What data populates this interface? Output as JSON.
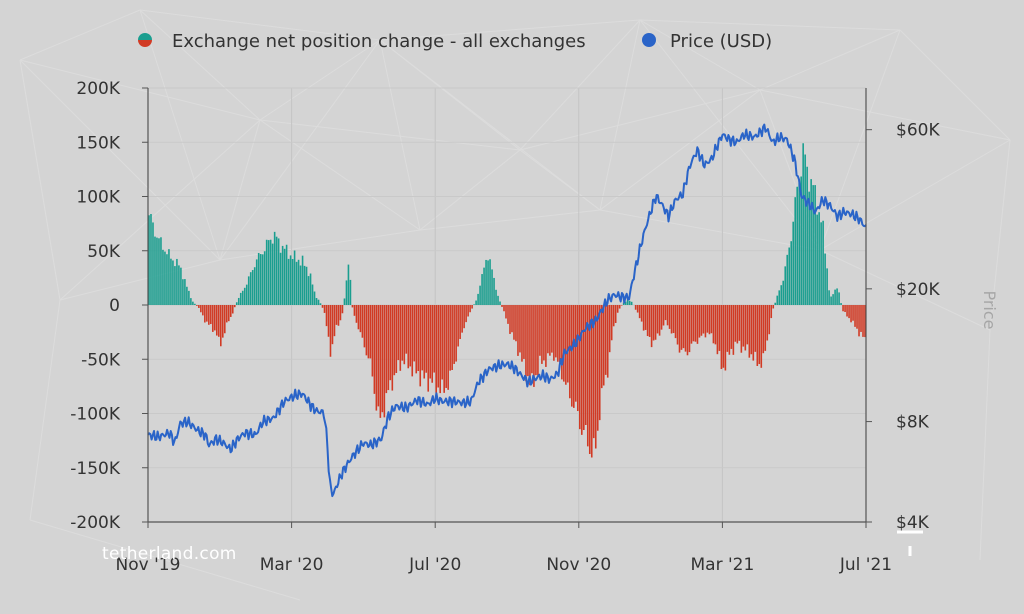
{
  "chart_data": {
    "type": "bar+line",
    "watermark": "tetherland.com",
    "legend": [
      {
        "label": "Exchange net position change - all exchanges",
        "colors": [
          "#1a9e8f",
          "#d13a24"
        ]
      },
      {
        "label": "Price (USD)",
        "colors": [
          "#2a64c8"
        ]
      }
    ],
    "left_axis": {
      "ticks": [
        200000,
        150000,
        100000,
        50000,
        0,
        -50000,
        -100000,
        -150000,
        -200000
      ],
      "tick_labels": [
        "200K",
        "150K",
        "100K",
        "50K",
        "0",
        "-50K",
        "-100K",
        "-150K",
        "-200K"
      ],
      "ylim": [
        -200000,
        200000
      ]
    },
    "right_axis": {
      "title": "Price",
      "scale": "log",
      "ticks": [
        60000,
        20000,
        8000,
        4000
      ],
      "tick_labels": [
        "$60K",
        "$20K",
        "$8K",
        "$4K"
      ],
      "ylim": [
        4000,
        80000
      ]
    },
    "x_axis": {
      "tick_labels": [
        "Nov '19",
        "Mar '20",
        "Jul '20",
        "Nov '20",
        "Mar '21",
        "Jul '21"
      ],
      "range_months": [
        0,
        20
      ]
    },
    "colors": {
      "positive": "#1a9e8f",
      "negative": "#d13a24",
      "price": "#2a64c8"
    },
    "net_position_points": [
      [
        0.0,
        85000
      ],
      [
        0.3,
        60000
      ],
      [
        0.6,
        45000
      ],
      [
        0.9,
        35000
      ],
      [
        1.1,
        15000
      ],
      [
        1.25,
        3000
      ],
      [
        1.4,
        -2000
      ],
      [
        1.6,
        -15000
      ],
      [
        1.9,
        -25000
      ],
      [
        2.0,
        -38000
      ],
      [
        2.2,
        -18000
      ],
      [
        2.35,
        -8000
      ],
      [
        2.5,
        5000
      ],
      [
        2.75,
        20000
      ],
      [
        3.0,
        40000
      ],
      [
        3.3,
        55000
      ],
      [
        3.5,
        65000
      ],
      [
        3.7,
        55000
      ],
      [
        4.0,
        45000
      ],
      [
        4.3,
        40000
      ],
      [
        4.5,
        30000
      ],
      [
        4.65,
        10000
      ],
      [
        4.8,
        2000
      ],
      [
        4.9,
        -5000
      ],
      [
        5.0,
        -25000
      ],
      [
        5.1,
        -45000
      ],
      [
        5.25,
        -20000
      ],
      [
        5.4,
        -12000
      ],
      [
        5.6,
        40000
      ],
      [
        5.7,
        -5000
      ],
      [
        5.9,
        -25000
      ],
      [
        6.2,
        -55000
      ],
      [
        6.45,
        -110000
      ],
      [
        6.6,
        -90000
      ],
      [
        6.8,
        -70000
      ],
      [
        7.1,
        -50000
      ],
      [
        7.4,
        -60000
      ],
      [
        7.7,
        -68000
      ],
      [
        8.0,
        -72000
      ],
      [
        8.2,
        -80000
      ],
      [
        8.4,
        -70000
      ],
      [
        8.6,
        -45000
      ],
      [
        8.8,
        -20000
      ],
      [
        9.0,
        -5000
      ],
      [
        9.15,
        5000
      ],
      [
        9.3,
        25000
      ],
      [
        9.45,
        48000
      ],
      [
        9.6,
        30000
      ],
      [
        9.75,
        8000
      ],
      [
        9.9,
        -5000
      ],
      [
        10.1,
        -25000
      ],
      [
        10.3,
        -40000
      ],
      [
        10.5,
        -60000
      ],
      [
        10.7,
        -75000
      ],
      [
        10.9,
        -55000
      ],
      [
        11.1,
        -50000
      ],
      [
        11.3,
        -45000
      ],
      [
        11.5,
        -60000
      ],
      [
        11.7,
        -80000
      ],
      [
        11.9,
        -95000
      ],
      [
        12.1,
        -115000
      ],
      [
        12.3,
        -130000
      ],
      [
        12.45,
        -140000
      ],
      [
        12.6,
        -90000
      ],
      [
        12.8,
        -60000
      ],
      [
        12.95,
        -25000
      ],
      [
        13.1,
        -5000
      ],
      [
        13.25,
        2000
      ],
      [
        13.4,
        5000
      ],
      [
        13.5,
        2000
      ],
      [
        13.6,
        -5000
      ],
      [
        13.8,
        -20000
      ],
      [
        14.0,
        -35000
      ],
      [
        14.2,
        -30000
      ],
      [
        14.4,
        -15000
      ],
      [
        14.6,
        -25000
      ],
      [
        14.8,
        -40000
      ],
      [
        15.0,
        -45000
      ],
      [
        15.2,
        -35000
      ],
      [
        15.4,
        -30000
      ],
      [
        15.6,
        -25000
      ],
      [
        15.8,
        -35000
      ],
      [
        16.0,
        -60000
      ],
      [
        16.2,
        -45000
      ],
      [
        16.4,
        -35000
      ],
      [
        16.6,
        -40000
      ],
      [
        16.8,
        -45000
      ],
      [
        17.0,
        -55000
      ],
      [
        17.15,
        -50000
      ],
      [
        17.3,
        -25000
      ],
      [
        17.4,
        -5000
      ],
      [
        17.5,
        5000
      ],
      [
        17.7,
        25000
      ],
      [
        17.9,
        60000
      ],
      [
        18.1,
        110000
      ],
      [
        18.25,
        140000
      ],
      [
        18.4,
        120000
      ],
      [
        18.6,
        100000
      ],
      [
        18.8,
        70000
      ],
      [
        18.9,
        40000
      ],
      [
        19.0,
        5000
      ],
      [
        19.2,
        18000
      ],
      [
        19.35,
        -5000
      ],
      [
        19.6,
        -15000
      ],
      [
        19.8,
        -25000
      ],
      [
        20.0,
        -33000
      ]
    ],
    "price_points": [
      [
        0.0,
        7300
      ],
      [
        0.3,
        7200
      ],
      [
        0.6,
        7400
      ],
      [
        0.75,
        6900
      ],
      [
        0.9,
        7900
      ],
      [
        1.1,
        8000
      ],
      [
        1.4,
        7500
      ],
      [
        1.6,
        7300
      ],
      [
        1.7,
        6800
      ],
      [
        1.9,
        7100
      ],
      [
        2.1,
        6900
      ],
      [
        2.3,
        6600
      ],
      [
        2.5,
        7100
      ],
      [
        2.7,
        7400
      ],
      [
        3.0,
        7300
      ],
      [
        3.2,
        8000
      ],
      [
        3.5,
        8200
      ],
      [
        3.8,
        9200
      ],
      [
        4.1,
        9600
      ],
      [
        4.3,
        9700
      ],
      [
        4.55,
        8900
      ],
      [
        4.7,
        8600
      ],
      [
        4.9,
        8500
      ],
      [
        5.0,
        6800
      ],
      [
        5.05,
        5300
      ],
      [
        5.15,
        4800
      ],
      [
        5.4,
        5600
      ],
      [
        5.7,
        6300
      ],
      [
        6.0,
        6900
      ],
      [
        6.2,
        6800
      ],
      [
        6.5,
        7100
      ],
      [
        6.7,
        8300
      ],
      [
        6.9,
        8900
      ],
      [
        7.2,
        8800
      ],
      [
        7.5,
        9300
      ],
      [
        7.8,
        9000
      ],
      [
        8.0,
        9400
      ],
      [
        8.2,
        9200
      ],
      [
        8.5,
        9200
      ],
      [
        8.8,
        9100
      ],
      [
        9.0,
        9200
      ],
      [
        9.2,
        10500
      ],
      [
        9.5,
        11500
      ],
      [
        9.8,
        11800
      ],
      [
        10.0,
        11900
      ],
      [
        10.2,
        11600
      ],
      [
        10.4,
        11000
      ],
      [
        10.6,
        10500
      ],
      [
        10.8,
        10800
      ],
      [
        11.0,
        11000
      ],
      [
        11.2,
        10700
      ],
      [
        11.4,
        11100
      ],
      [
        11.6,
        12800
      ],
      [
        11.9,
        13700
      ],
      [
        12.2,
        15300
      ],
      [
        12.5,
        16200
      ],
      [
        12.8,
        18500
      ],
      [
        13.0,
        19200
      ],
      [
        13.2,
        18900
      ],
      [
        13.4,
        18800
      ],
      [
        13.6,
        23500
      ],
      [
        13.8,
        28900
      ],
      [
        14.0,
        34000
      ],
      [
        14.15,
        38000
      ],
      [
        14.3,
        36000
      ],
      [
        14.5,
        33000
      ],
      [
        14.7,
        37000
      ],
      [
        14.9,
        38500
      ],
      [
        15.1,
        47000
      ],
      [
        15.3,
        52000
      ],
      [
        15.5,
        47000
      ],
      [
        15.7,
        49000
      ],
      [
        16.0,
        58000
      ],
      [
        16.2,
        56000
      ],
      [
        16.4,
        55000
      ],
      [
        16.6,
        58000
      ],
      [
        16.9,
        57000
      ],
      [
        17.2,
        61000
      ],
      [
        17.4,
        55000
      ],
      [
        17.6,
        57000
      ],
      [
        17.8,
        56000
      ],
      [
        18.0,
        49000
      ],
      [
        18.2,
        38000
      ],
      [
        18.4,
        36000
      ],
      [
        18.6,
        34000
      ],
      [
        18.8,
        37000
      ],
      [
        19.0,
        35500
      ],
      [
        19.2,
        33000
      ],
      [
        19.4,
        34000
      ],
      [
        19.6,
        33500
      ],
      [
        19.8,
        32500
      ],
      [
        20.0,
        30500
      ]
    ]
  }
}
